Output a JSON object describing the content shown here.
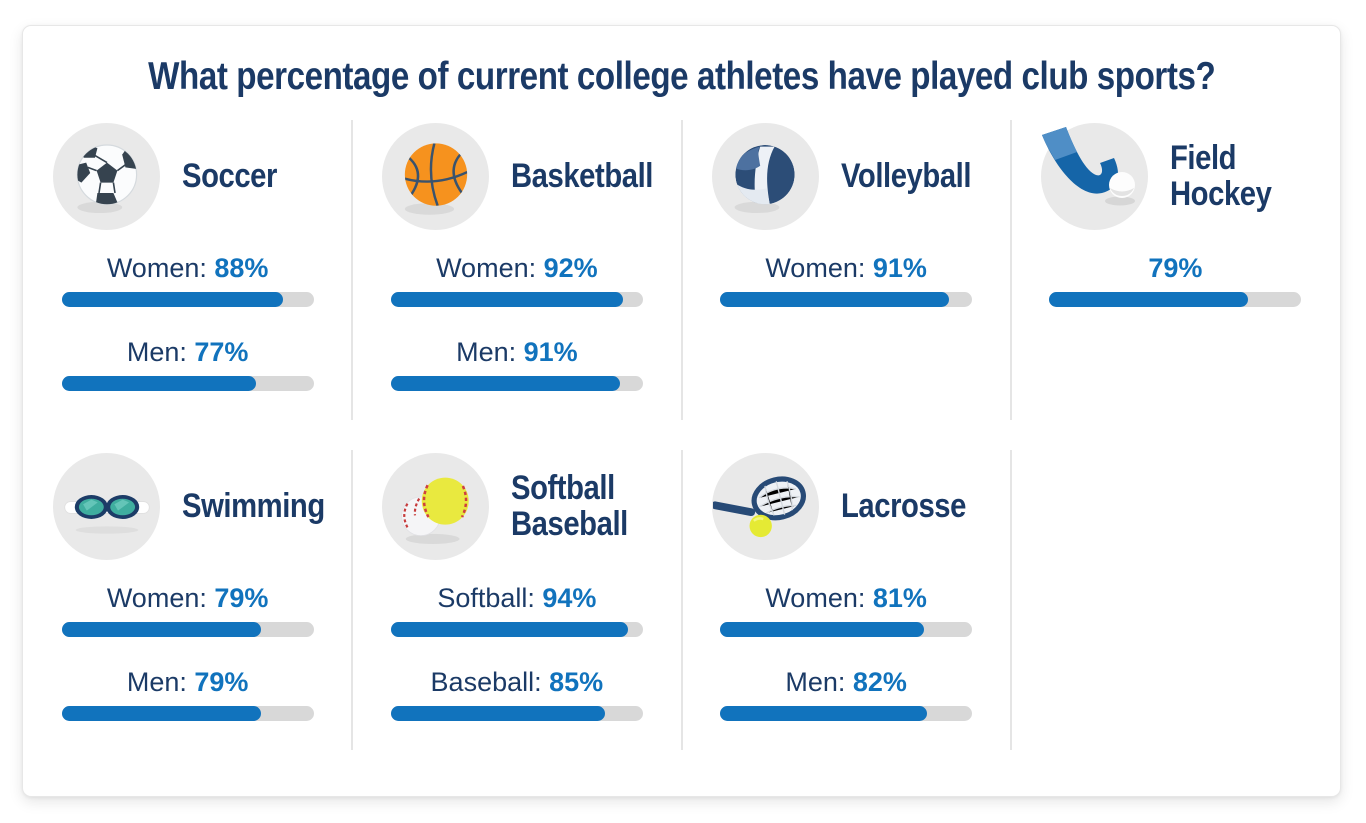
{
  "page": {
    "title": "What percentage of current college athletes have played club sports?"
  },
  "colors": {
    "navy": "#1b3a66",
    "accent_blue": "#1173bd",
    "bar_track": "#d8d8d8",
    "icon_circle_bg": "#e9e9e9",
    "divider": "#e5e5e5",
    "card_border": "#e7e7e7"
  },
  "chart_data": {
    "type": "bar",
    "title": "What percentage of current college athletes have played club sports?",
    "unit": "percent",
    "value_range": [
      0,
      100
    ],
    "sports": [
      {
        "name": "Soccer",
        "name_lines": [
          "Soccer"
        ],
        "icon": "soccer-ball-icon",
        "stats": [
          {
            "label": "Women:",
            "value_display": "88%",
            "percent": 88
          },
          {
            "label": "Men:",
            "value_display": "77%",
            "percent": 77
          }
        ]
      },
      {
        "name": "Basketball",
        "name_lines": [
          "Basketball"
        ],
        "icon": "basketball-icon",
        "stats": [
          {
            "label": "Women:",
            "value_display": "92%",
            "percent": 92
          },
          {
            "label": "Men:",
            "value_display": "91%",
            "percent": 91
          }
        ]
      },
      {
        "name": "Volleyball",
        "name_lines": [
          "Volleyball"
        ],
        "icon": "volleyball-icon",
        "stats": [
          {
            "label": "Women:",
            "value_display": "91%",
            "percent": 91
          }
        ]
      },
      {
        "name": "Field Hockey",
        "name_lines": [
          "Field",
          "Hockey"
        ],
        "icon": "field-hockey-stick-icon",
        "stats": [
          {
            "label": "",
            "value_display": "79%",
            "percent": 79
          }
        ]
      },
      {
        "name": "Swimming",
        "name_lines": [
          "Swimming"
        ],
        "icon": "swim-goggles-icon",
        "stats": [
          {
            "label": "Women:",
            "value_display": "79%",
            "percent": 79
          },
          {
            "label": "Men:",
            "value_display": "79%",
            "percent": 79
          }
        ]
      },
      {
        "name": "Softball Baseball",
        "name_lines": [
          "Softball",
          "Baseball"
        ],
        "icon": "softball-baseball-icon",
        "stats": [
          {
            "label": "Softball:",
            "value_display": "94%",
            "percent": 94
          },
          {
            "label": "Baseball:",
            "value_display": "85%",
            "percent": 85
          }
        ]
      },
      {
        "name": "Lacrosse",
        "name_lines": [
          "Lacrosse"
        ],
        "icon": "lacrosse-stick-icon",
        "stats": [
          {
            "label": "Women:",
            "value_display": "81%",
            "percent": 81
          },
          {
            "label": "Men:",
            "value_display": "82%",
            "percent": 82
          }
        ]
      }
    ]
  }
}
